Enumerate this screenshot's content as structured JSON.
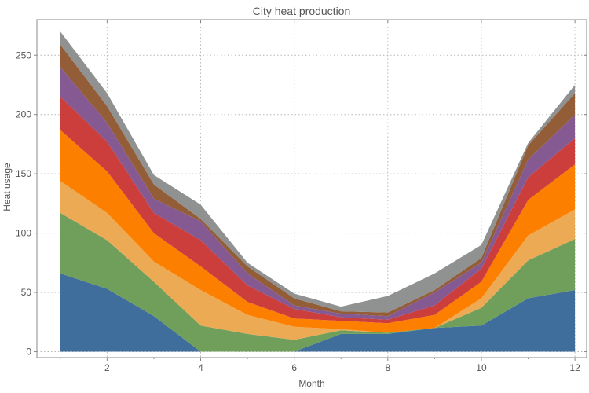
{
  "chart_data": {
    "type": "area",
    "stacked": true,
    "title": "City heat production",
    "xlabel": "Month",
    "ylabel": "Heat usage",
    "x": [
      1,
      2,
      3,
      4,
      5,
      6,
      7,
      8,
      9,
      10,
      11,
      12
    ],
    "xlim": [
      0.5,
      12.25
    ],
    "ylim": [
      -5,
      280
    ],
    "xticks": [
      2,
      4,
      6,
      8,
      10,
      12
    ],
    "yticks": [
      0,
      50,
      100,
      150,
      200,
      250
    ],
    "grid": true,
    "legend": "none",
    "series": [
      {
        "color": "#3f6e9d",
        "values": [
          66,
          53,
          30,
          0,
          0,
          0,
          15,
          15,
          20,
          22,
          45,
          52
        ]
      },
      {
        "color": "#6f9f5b",
        "values": [
          51,
          41,
          29,
          22,
          15,
          10,
          3,
          1,
          0,
          15,
          32,
          43
        ]
      },
      {
        "color": "#edaa55",
        "values": [
          27,
          23,
          17,
          30,
          16,
          11,
          1,
          0,
          0,
          8,
          21,
          25
        ]
      },
      {
        "color": "#fc7f00",
        "values": [
          43,
          35,
          24,
          20,
          11,
          7,
          7,
          8,
          11,
          14,
          30,
          38
        ]
      },
      {
        "color": "#cc3e3c",
        "values": [
          28,
          25,
          17,
          22,
          14,
          8,
          3,
          3,
          8,
          11,
          19,
          22
        ]
      },
      {
        "color": "#855a92",
        "values": [
          25,
          16,
          12,
          16,
          10,
          3,
          3,
          3,
          11,
          5,
          15,
          20
        ]
      },
      {
        "color": "#935d37",
        "values": [
          19,
          14,
          12,
          2,
          6,
          6,
          2,
          3,
          2,
          4,
          12,
          18
        ]
      },
      {
        "color": "#909191",
        "values": [
          11,
          11,
          8,
          12,
          3,
          4,
          4,
          14,
          14,
          11,
          2,
          7
        ]
      }
    ]
  }
}
